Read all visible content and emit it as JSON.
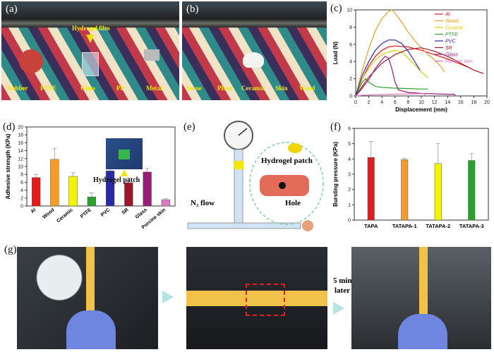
{
  "panels": {
    "a": {
      "label": "(a)",
      "top_caption": "Hydrogel film",
      "materials": [
        "Rubber",
        "PTFE",
        "Glass",
        "PP",
        "Metal"
      ]
    },
    "b": {
      "label": "(b)",
      "materials": [
        "Stone",
        "Plant",
        "Ceramic",
        "Skin",
        "Wood"
      ]
    },
    "c": {
      "label": "(c)"
    },
    "d": {
      "label": "(d)",
      "inset_caption": "Hydrogel patch"
    },
    "e": {
      "label": "(e)",
      "patch_label": "Hydrogel patch",
      "flow_label": "N₂ flow",
      "hole_label": "Hole"
    },
    "f": {
      "label": "(f)"
    },
    "g": {
      "label": "(g)",
      "time_note_line1": "5 min",
      "time_note_line2": "later"
    }
  },
  "chart_data": [
    {
      "id": "c",
      "type": "line",
      "xlabel": "Displacement (mm)",
      "ylabel": "Load (N)",
      "xlim": [
        0,
        20
      ],
      "ylim": [
        0,
        10
      ],
      "xticks": [
        0,
        2,
        4,
        6,
        8,
        10,
        12,
        14,
        16,
        18,
        20
      ],
      "yticks": [
        0,
        2,
        4,
        6,
        8,
        10
      ],
      "legend_position": "top-right",
      "series": [
        {
          "name": "Al",
          "color": "#e41a1c",
          "points": [
            [
              0,
              0
            ],
            [
              1,
              2
            ],
            [
              2,
              3.5
            ],
            [
              3,
              4.6
            ],
            [
              4,
              5.3
            ],
            [
              5,
              5.7
            ],
            [
              6,
              5.8
            ],
            [
              8,
              5.7
            ],
            [
              10,
              5.3
            ],
            [
              12,
              4.8
            ],
            [
              14,
              4.3
            ],
            [
              16,
              3.7
            ],
            [
              17.5,
              3.2
            ]
          ]
        },
        {
          "name": "Wood",
          "color": "#f39c2a",
          "points": [
            [
              0,
              0
            ],
            [
              1,
              3
            ],
            [
              2,
              5.5
            ],
            [
              3,
              7.6
            ],
            [
              4,
              9
            ],
            [
              5,
              9.8
            ],
            [
              5.5,
              10
            ],
            [
              6,
              9.6
            ],
            [
              7,
              8.6
            ],
            [
              8,
              7.4
            ],
            [
              9,
              6.4
            ],
            [
              10,
              5.6
            ],
            [
              11,
              4.8
            ],
            [
              12,
              4.2
            ],
            [
              13,
              3.4
            ],
            [
              13.5,
              2.8
            ]
          ]
        },
        {
          "name": "Ceramic",
          "color": "#d8d000",
          "points": [
            [
              0,
              0
            ],
            [
              1,
              2
            ],
            [
              2,
              3.2
            ],
            [
              3,
              4.2
            ],
            [
              4,
              4.8
            ],
            [
              5,
              5.1
            ],
            [
              6,
              5.3
            ],
            [
              7,
              5.1
            ],
            [
              8,
              4.4
            ],
            [
              9,
              3.6
            ],
            [
              10,
              2.8
            ],
            [
              11,
              2.1
            ]
          ]
        },
        {
          "name": "PTFE",
          "color": "#2ca02c",
          "points": [
            [
              0,
              0
            ],
            [
              0.5,
              0.8
            ],
            [
              1,
              1.6
            ],
            [
              1.5,
              2
            ],
            [
              2,
              1.6
            ],
            [
              3,
              1.1
            ],
            [
              4,
              1.0
            ],
            [
              6,
              0.9
            ],
            [
              8,
              0.85
            ],
            [
              10,
              0.8
            ],
            [
              11,
              0.8
            ]
          ]
        },
        {
          "name": "PVC",
          "color": "#2a2aa6",
          "points": [
            [
              0,
              0
            ],
            [
              1,
              2.4
            ],
            [
              2,
              4
            ],
            [
              3,
              5.3
            ],
            [
              4,
              6.1
            ],
            [
              5,
              6.5
            ],
            [
              6,
              6.5
            ],
            [
              7,
              6.1
            ],
            [
              8,
              5.2
            ],
            [
              9,
              4
            ],
            [
              9.8,
              3
            ]
          ]
        },
        {
          "name": "SR",
          "color": "#a0152a",
          "points": [
            [
              0,
              0
            ],
            [
              2,
              2.2
            ],
            [
              4,
              3.8
            ],
            [
              6,
              4.8
            ],
            [
              8,
              5.4
            ],
            [
              10,
              5.6
            ],
            [
              12,
              5.2
            ],
            [
              14,
              4.6
            ],
            [
              16,
              3.8
            ],
            [
              18,
              3
            ],
            [
              19.5,
              2.6
            ]
          ]
        },
        {
          "name": "Glass",
          "color": "#9b1b7a",
          "points": [
            [
              0,
              0
            ],
            [
              1,
              0.9
            ],
            [
              2,
              1.9
            ],
            [
              3,
              3.2
            ],
            [
              4,
              4.2
            ],
            [
              4.5,
              4.6
            ],
            [
              5,
              4.4
            ],
            [
              5.5,
              3.2
            ],
            [
              6,
              1.6
            ],
            [
              6.5,
              0.7
            ],
            [
              8,
              0.4
            ],
            [
              10,
              0.3
            ],
            [
              14,
              0.2
            ],
            [
              15,
              0.2
            ],
            [
              15.2,
              0
            ]
          ]
        },
        {
          "name": "Porcine skin",
          "color": "#e377c2",
          "points": [
            [
              0,
              0
            ],
            [
              1,
              0.08
            ],
            [
              3,
              0.15
            ],
            [
              5,
              0.2
            ],
            [
              7,
              0.22
            ],
            [
              9,
              0.25
            ],
            [
              10.5,
              0.25
            ],
            [
              10.5,
              0
            ]
          ]
        }
      ]
    },
    {
      "id": "d",
      "type": "bar",
      "ylabel": "Adhesive strength (KPa)",
      "ylim": [
        0,
        20
      ],
      "yticks": [
        0,
        2,
        4,
        6,
        8,
        10,
        12,
        14,
        16,
        18,
        20
      ],
      "categories": [
        "Al",
        "Wood",
        "Ceramic",
        "PTFE",
        "PVC",
        "SR",
        "Glass",
        "Porcine skin"
      ],
      "values": [
        7.2,
        11.8,
        7.5,
        2.3,
        8.9,
        5.9,
        8.6,
        1.6
      ],
      "errors": [
        0.8,
        2.8,
        0.9,
        1.0,
        1.0,
        1.2,
        0.9,
        0.3
      ],
      "colors": [
        "#e41a1c",
        "#f39c2a",
        "#f3f30a",
        "#2ca02c",
        "#2a2aa6",
        "#a0152a",
        "#9b1b7a",
        "#e377c2"
      ]
    },
    {
      "id": "f",
      "type": "bar",
      "ylabel": "Bursting pressure (KPa)",
      "ylim": [
        0,
        6
      ],
      "yticks": [
        0,
        1,
        2,
        3,
        4,
        5,
        6
      ],
      "categories": [
        "TAPA",
        "TATAPA-1",
        "TATAPA-2",
        "TATAPA-3"
      ],
      "values": [
        4.1,
        3.95,
        3.7,
        3.9
      ],
      "errors": [
        1.05,
        0.1,
        1.3,
        0.45
      ],
      "colors": [
        "#e41a1c",
        "#f39c2a",
        "#f3f30a",
        "#2ca02c"
      ]
    }
  ]
}
